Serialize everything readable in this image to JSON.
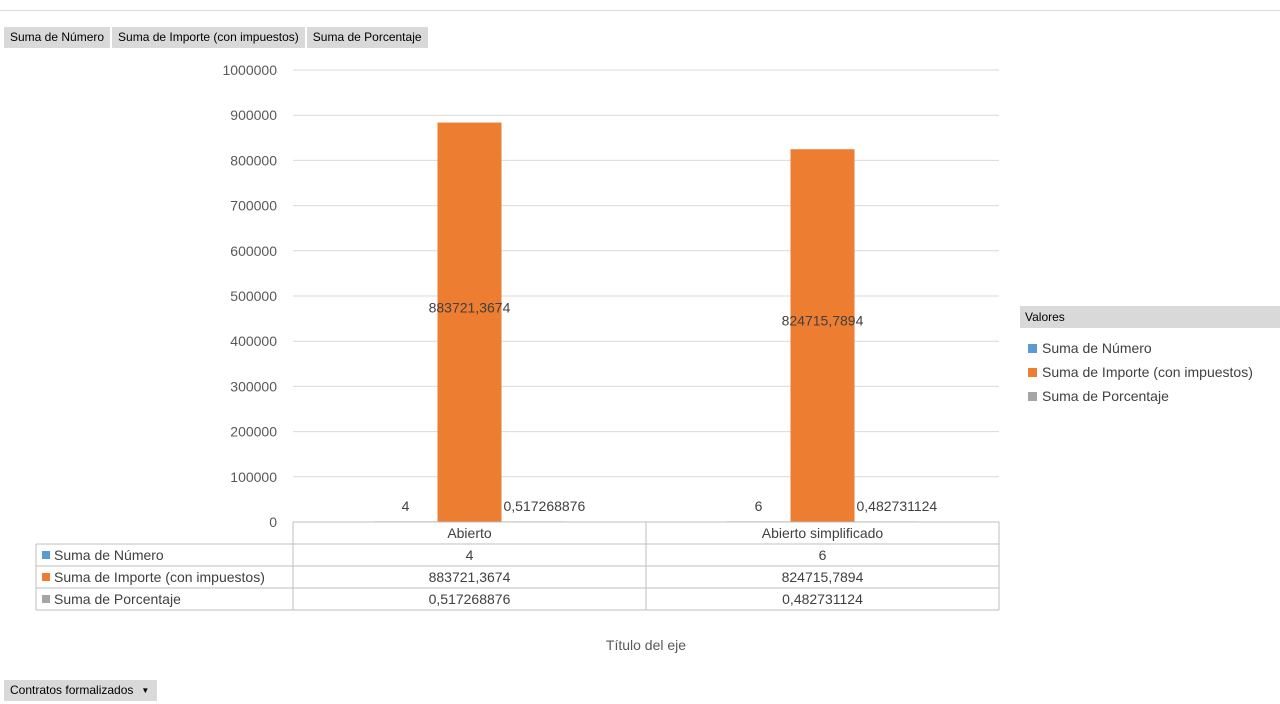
{
  "field_buttons": [
    "Suma de Número",
    "Suma de Importe (con impuestos)",
    "Suma de Porcentaje"
  ],
  "filter_button": {
    "label": "Contratos formalizados",
    "icon": "dropdown-arrow-icon"
  },
  "legend": {
    "title": "Valores",
    "items": [
      {
        "label": "Suma de Número",
        "color": "#5b9bd5"
      },
      {
        "label": "Suma de Importe (con impuestos)",
        "color": "#ed7d31"
      },
      {
        "label": "Suma de Porcentaje",
        "color": "#a5a5a5"
      }
    ]
  },
  "chart_data": {
    "type": "bar",
    "categories": [
      "Abierto",
      "Abierto simplificado"
    ],
    "series": [
      {
        "name": "Suma de Número",
        "color": "#5b9bd5",
        "values": [
          4,
          6
        ],
        "labels": [
          "4",
          "6"
        ]
      },
      {
        "name": "Suma de Importe (con impuestos)",
        "color": "#ed7d31",
        "values": [
          883721.3674,
          824715.7894
        ],
        "labels": [
          "883721,3674",
          "824715,7894"
        ]
      },
      {
        "name": "Suma de Porcentaje",
        "color": "#a5a5a5",
        "values": [
          0.517268876,
          0.482731124
        ],
        "labels": [
          "0,517268876",
          "0,482731124"
        ]
      }
    ],
    "ylim": [
      0,
      1000000
    ],
    "yticks": [
      "0",
      "100000",
      "200000",
      "300000",
      "400000",
      "500000",
      "600000",
      "700000",
      "800000",
      "900000",
      "1000000"
    ],
    "xlabel": "Título del eje",
    "grid": true,
    "legend_position": "right",
    "data_table": true
  }
}
